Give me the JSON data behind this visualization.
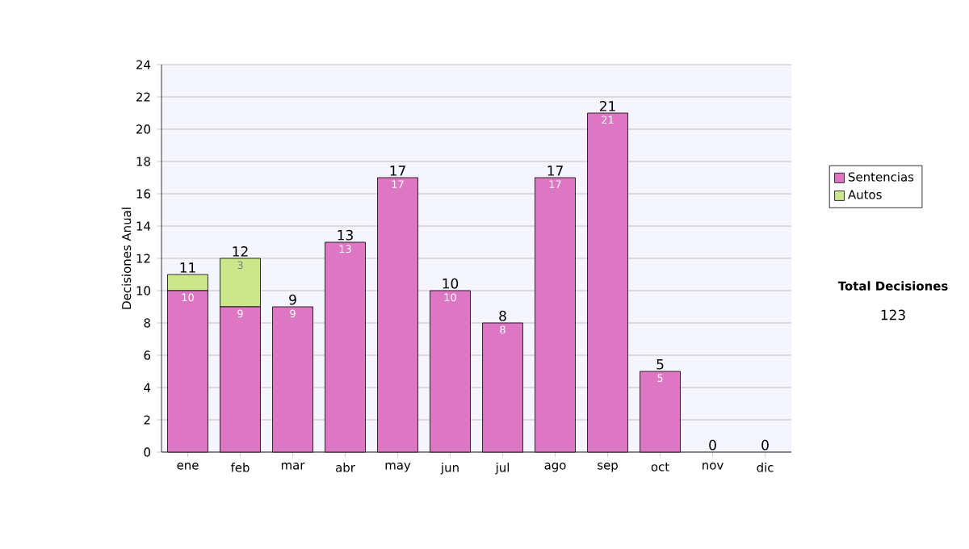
{
  "chart_data": {
    "type": "bar",
    "stacked": true,
    "ylabel": "Decisiones Anual",
    "categories": [
      "ene",
      "feb",
      "mar",
      "abr",
      "may",
      "jun",
      "jul",
      "ago",
      "sep",
      "oct",
      "nov",
      "dic"
    ],
    "series": [
      {
        "name": "Sentencias",
        "color": "#dd77c4",
        "values": [
          10,
          9,
          9,
          13,
          17,
          10,
          8,
          17,
          21,
          5,
          0,
          0
        ],
        "value_labels": [
          "10",
          "9",
          "9",
          "13",
          "17",
          "10",
          "8",
          "17",
          "21",
          "5",
          null,
          null
        ]
      },
      {
        "name": "Autos",
        "color": "#cce68c",
        "values": [
          1,
          3,
          0,
          0,
          0,
          0,
          0,
          0,
          0,
          0,
          0,
          0
        ],
        "value_labels": [
          null,
          "3",
          null,
          null,
          null,
          null,
          null,
          null,
          null,
          null,
          null,
          null
        ]
      }
    ],
    "totals": [
      "11",
      "12",
      "9",
      "13",
      "17",
      "10",
      "8",
      "17",
      "21",
      "5",
      "0",
      "0"
    ],
    "ylim": [
      0,
      24
    ],
    "yticks": [
      0,
      2,
      4,
      6,
      8,
      10,
      12,
      14,
      16,
      18,
      20,
      22,
      24
    ],
    "grid": "y",
    "legend": "right",
    "annotations": [
      "Total Decisiones",
      "123"
    ]
  }
}
